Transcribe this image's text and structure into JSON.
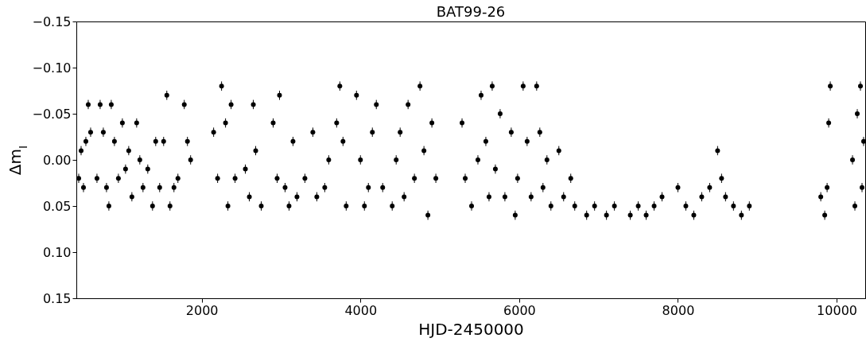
{
  "chart_data": {
    "type": "scatter",
    "title": "BAT99-26",
    "xlabel": "HJD-2450000",
    "ylabel": "Δm$_{I}$",
    "xlim": [
      420,
      10360
    ],
    "xticks": [
      2000,
      4000,
      6000,
      8000,
      10000
    ],
    "ylim": [
      0.15,
      -0.15
    ],
    "yticks": [
      {
        "value": -0.15,
        "label": "−0.15"
      },
      {
        "value": -0.1,
        "label": "−0.10"
      },
      {
        "value": -0.05,
        "label": "−0.05"
      },
      {
        "value": 0,
        "label": "0.00"
      },
      {
        "value": 0.05,
        "label": "0.05"
      },
      {
        "value": 0.1,
        "label": "0.10"
      },
      {
        "value": 0.15,
        "label": "0.15"
      }
    ],
    "grid": false,
    "marker": "circle",
    "series": [
      {
        "color": "#000000",
        "x": [
          450,
          480,
          510,
          540,
          570,
          600,
          680,
          720,
          760,
          800,
          830,
          860,
          900,
          950,
          1000,
          1040,
          1080,
          1120,
          1180,
          1220,
          1260,
          1320,
          1380,
          1420,
          1470,
          1520,
          1560,
          1600,
          1650,
          1700,
          1780,
          1820,
          1860,
          2150,
          2200,
          2250,
          2300,
          2330,
          2370,
          2420,
          2550,
          2600,
          2650,
          2680,
          2750,
          2900,
          2950,
          2980,
          3050,
          3100,
          3150,
          3200,
          3300,
          3400,
          3450,
          3550,
          3600,
          3700,
          3740,
          3780,
          3820,
          3950,
          4000,
          4050,
          4100,
          4150,
          4200,
          4280,
          4400,
          4450,
          4500,
          4550,
          4600,
          4680,
          4750,
          4800,
          4850,
          4900,
          4950,
          5280,
          5320,
          5400,
          5480,
          5520,
          5580,
          5620,
          5660,
          5700,
          5760,
          5820,
          5900,
          5950,
          5980,
          6050,
          6100,
          6150,
          6220,
          6260,
          6300,
          6350,
          6400,
          6500,
          6560,
          6650,
          6700,
          6850,
          6950,
          7100,
          7200,
          7400,
          7500,
          7600,
          7700,
          7800,
          8000,
          8100,
          8200,
          8300,
          8400,
          8500,
          8550,
          8600,
          8700,
          8800,
          8900,
          9800,
          9850,
          9880,
          9900,
          9920,
          10200,
          10230,
          10260,
          10300,
          10320,
          10340
        ],
        "values": [
          0.02,
          -0.01,
          0.03,
          -0.02,
          -0.06,
          -0.03,
          0.02,
          -0.06,
          -0.03,
          0.03,
          0.05,
          -0.06,
          -0.02,
          0.02,
          -0.04,
          0.01,
          -0.01,
          0.04,
          -0.04,
          0.0,
          0.03,
          0.01,
          0.05,
          -0.02,
          0.03,
          -0.02,
          -0.07,
          0.05,
          0.03,
          0.02,
          -0.06,
          -0.02,
          0.0,
          -0.03,
          0.02,
          -0.08,
          -0.04,
          0.05,
          -0.06,
          0.02,
          0.01,
          0.04,
          -0.06,
          -0.01,
          0.05,
          -0.04,
          0.02,
          -0.07,
          0.03,
          0.05,
          -0.02,
          0.04,
          0.02,
          -0.03,
          0.04,
          0.03,
          0.0,
          -0.04,
          -0.08,
          -0.02,
          0.05,
          -0.07,
          0.0,
          0.05,
          0.03,
          -0.03,
          -0.06,
          0.03,
          0.05,
          0.0,
          -0.03,
          0.04,
          -0.06,
          0.02,
          -0.08,
          -0.01,
          0.06,
          -0.04,
          0.02,
          -0.04,
          0.02,
          0.05,
          0.0,
          -0.07,
          -0.02,
          0.04,
          -0.08,
          0.01,
          -0.05,
          0.04,
          -0.03,
          0.06,
          0.02,
          -0.08,
          -0.02,
          0.04,
          -0.08,
          -0.03,
          0.03,
          0.0,
          0.05,
          -0.01,
          0.04,
          0.02,
          0.05,
          0.06,
          0.05,
          0.06,
          0.05,
          0.06,
          0.05,
          0.06,
          0.05,
          0.04,
          0.03,
          0.05,
          0.06,
          0.04,
          0.03,
          -0.01,
          0.02,
          0.04,
          0.05,
          0.06,
          0.05,
          0.04,
          0.06,
          0.03,
          -0.04,
          -0.08,
          0.0,
          0.05,
          -0.05,
          -0.08,
          0.03,
          -0.02
        ],
        "errors": [
          0.005,
          0.005,
          0.005,
          0.005,
          0.005,
          0.005,
          0.005,
          0.005,
          0.005,
          0.005,
          0.005,
          0.005,
          0.005,
          0.005,
          0.005,
          0.005,
          0.005,
          0.005,
          0.005,
          0.005,
          0.005,
          0.005,
          0.005,
          0.005,
          0.005,
          0.005,
          0.005,
          0.005,
          0.005,
          0.005,
          0.005,
          0.005,
          0.005,
          0.005,
          0.005,
          0.005,
          0.005,
          0.005,
          0.005,
          0.005,
          0.005,
          0.005,
          0.005,
          0.005,
          0.005,
          0.005,
          0.005,
          0.005,
          0.005,
          0.005,
          0.005,
          0.005,
          0.005,
          0.005,
          0.005,
          0.005,
          0.005,
          0.005,
          0.005,
          0.005,
          0.005,
          0.005,
          0.005,
          0.005,
          0.005,
          0.005,
          0.005,
          0.005,
          0.005,
          0.005,
          0.005,
          0.005,
          0.005,
          0.005,
          0.005,
          0.005,
          0.005,
          0.005,
          0.005,
          0.005,
          0.005,
          0.005,
          0.005,
          0.005,
          0.005,
          0.005,
          0.005,
          0.005,
          0.005,
          0.005,
          0.005,
          0.005,
          0.005,
          0.005,
          0.005,
          0.005,
          0.005,
          0.005,
          0.005,
          0.005,
          0.005,
          0.005,
          0.005,
          0.005,
          0.005,
          0.005,
          0.005,
          0.005,
          0.005,
          0.005,
          0.005,
          0.005,
          0.005,
          0.005,
          0.005,
          0.005,
          0.005,
          0.005,
          0.005,
          0.005,
          0.005,
          0.005,
          0.005,
          0.005,
          0.005,
          0.005,
          0.005,
          0.005,
          0.005,
          0.005,
          0.005,
          0.005,
          0.005,
          0.005,
          0.005,
          0.005
        ]
      }
    ]
  }
}
